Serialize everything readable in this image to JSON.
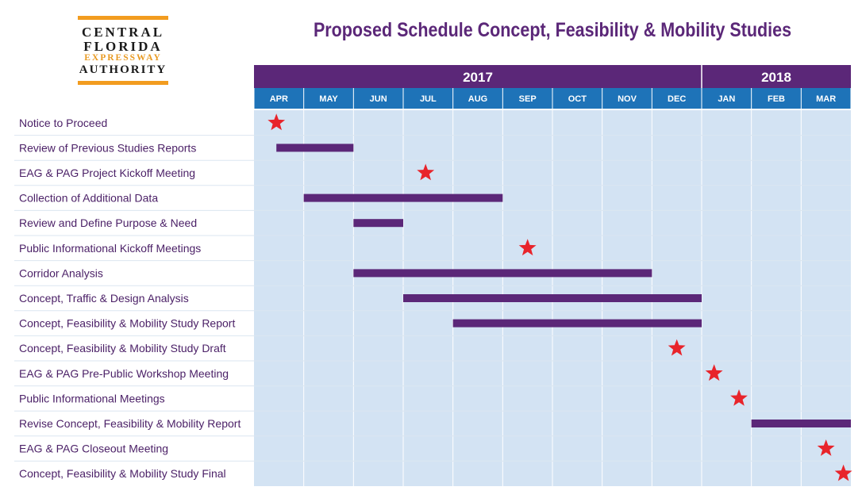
{
  "logo": {
    "line1": "CENTRAL",
    "line2": "FLORIDA",
    "line3": "EXPRESSWAY",
    "line4": "AUTHORITY"
  },
  "colors": {
    "header_purple": "#5b2778",
    "month_blue": "#1e73b8",
    "grid_fill": "#d3e3f3",
    "bar_purple": "#5b2778",
    "star_red": "#e8242b",
    "logo_orange": "#f29c1f"
  },
  "chart_data": {
    "type": "gantt",
    "title": "Proposed Schedule Concept, Feasibility & Mobility Studies",
    "years": [
      {
        "label": "2017",
        "months": 9
      },
      {
        "label": "2018",
        "months": 3
      }
    ],
    "months": [
      "APR",
      "MAY",
      "JUN",
      "JUL",
      "AUG",
      "SEP",
      "OCT",
      "NOV",
      "DEC",
      "JAN",
      "FEB",
      "MAR"
    ],
    "tasks": [
      {
        "name": "Notice to Proceed",
        "kind": "milestone",
        "at": 0.45
      },
      {
        "name": "Review of Previous Studies Reports",
        "kind": "bar",
        "start": 0.45,
        "end": 2.0
      },
      {
        "name": "EAG & PAG Project Kickoff  Meeting",
        "kind": "milestone",
        "at": 3.45
      },
      {
        "name": "Collection of Additional Data",
        "kind": "bar",
        "start": 1.0,
        "end": 5.0
      },
      {
        "name": "Review and Define Purpose & Need",
        "kind": "bar",
        "start": 2.0,
        "end": 3.0
      },
      {
        "name": "Public Informational Kickoff Meetings",
        "kind": "milestone",
        "at": 5.5
      },
      {
        "name": "Corridor Analysis",
        "kind": "bar",
        "start": 2.0,
        "end": 8.0
      },
      {
        "name": "Concept, Traffic & Design Analysis",
        "kind": "bar",
        "start": 3.0,
        "end": 9.0
      },
      {
        "name": "Concept, Feasibility & Mobility Study Report",
        "kind": "bar",
        "start": 4.0,
        "end": 9.0
      },
      {
        "name": "Concept, Feasibility & Mobility Study Draft",
        "kind": "milestone",
        "at": 8.5
      },
      {
        "name": "EAG & PAG Pre-Public Workshop Meeting",
        "kind": "milestone",
        "at": 9.25
      },
      {
        "name": "Public Informational Meetings",
        "kind": "milestone",
        "at": 9.75
      },
      {
        "name": "Revise Concept, Feasibility & Mobility Report",
        "kind": "bar",
        "start": 10.0,
        "end": 12.0
      },
      {
        "name": "EAG & PAG Closeout Meeting",
        "kind": "milestone",
        "at": 11.5
      },
      {
        "name": "Concept, Feasibility & Mobility Study Final",
        "kind": "milestone",
        "at": 11.85
      }
    ]
  }
}
